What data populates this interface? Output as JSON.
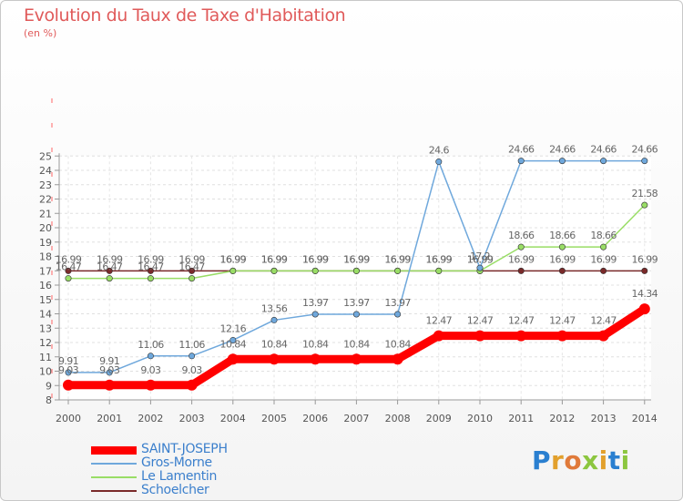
{
  "title": "Evolution du Taux de Taxe d'Habitation",
  "subtitle": "(en %)",
  "logo": "Proxiti",
  "chart_data": {
    "type": "line",
    "ylim": [
      8,
      25
    ],
    "yticks": [
      8,
      9,
      10,
      11,
      12,
      13,
      14,
      15,
      16,
      17,
      18,
      19,
      20,
      21,
      22,
      23,
      24,
      25
    ],
    "x": [
      "2000",
      "2001",
      "2002",
      "2003",
      "2004",
      "2005",
      "2006",
      "2007",
      "2008",
      "2009",
      "2010",
      "2011",
      "2012",
      "2013",
      "2014"
    ],
    "grid": true,
    "legend_position": "bottom-left",
    "series": [
      {
        "name": "SAINT-JOSEPH",
        "color": "#ff0000",
        "values": [
          9.03,
          9.03,
          9.03,
          9.03,
          10.84,
          10.84,
          10.84,
          10.84,
          10.84,
          12.47,
          12.47,
          12.47,
          12.47,
          12.47,
          14.34
        ],
        "labels": [
          "9.03",
          "9.03",
          "9.03",
          "9.03",
          "10.84",
          "10.84",
          "10.84",
          "10.84",
          "10.84",
          "12.47",
          "12.47",
          "12.47",
          "12.47",
          "12.47",
          "14.34"
        ]
      },
      {
        "name": "Gros-Morne",
        "color": "#6fa8dc",
        "values": [
          9.91,
          9.91,
          11.06,
          11.06,
          12.16,
          13.56,
          13.97,
          13.97,
          13.97,
          24.6,
          17.2,
          24.66,
          24.66,
          24.66,
          24.66
        ],
        "labels": [
          "9.91",
          "9.91",
          "11.06",
          "11.06",
          "12.16",
          "13.56",
          "13.97",
          "13.97",
          "13.97",
          "24.6",
          "17.2",
          "24.66",
          "24.66",
          "24.66",
          "24.66"
        ]
      },
      {
        "name": "Le Lamentin",
        "color": "#99dd66",
        "values": [
          16.47,
          16.47,
          16.47,
          16.47,
          16.99,
          16.99,
          16.99,
          16.99,
          16.99,
          16.99,
          16.99,
          18.66,
          18.66,
          18.66,
          21.58
        ],
        "labels": [
          "16.47",
          "16.47",
          "16.47",
          "16.47",
          "16.99",
          "16.99",
          "16.99",
          "16.99",
          "16.99",
          "16.99",
          "16.99",
          "18.66",
          "18.66",
          "18.66",
          "21.58"
        ]
      },
      {
        "name": "Schoelcher",
        "color": "#7a2a2a",
        "values": [
          16.99,
          16.99,
          16.99,
          16.99,
          16.99,
          16.99,
          16.99,
          16.99,
          16.99,
          16.99,
          16.99,
          16.99,
          16.99,
          16.99,
          16.99
        ],
        "labels": [
          "16.99",
          "16.99",
          "16.99",
          "16.99",
          "16.99",
          "16.99",
          "16.99",
          "16.99",
          "16.99",
          "16.99",
          "16.99",
          "16.99",
          "16.99",
          "16.99",
          "16.99"
        ]
      }
    ]
  }
}
